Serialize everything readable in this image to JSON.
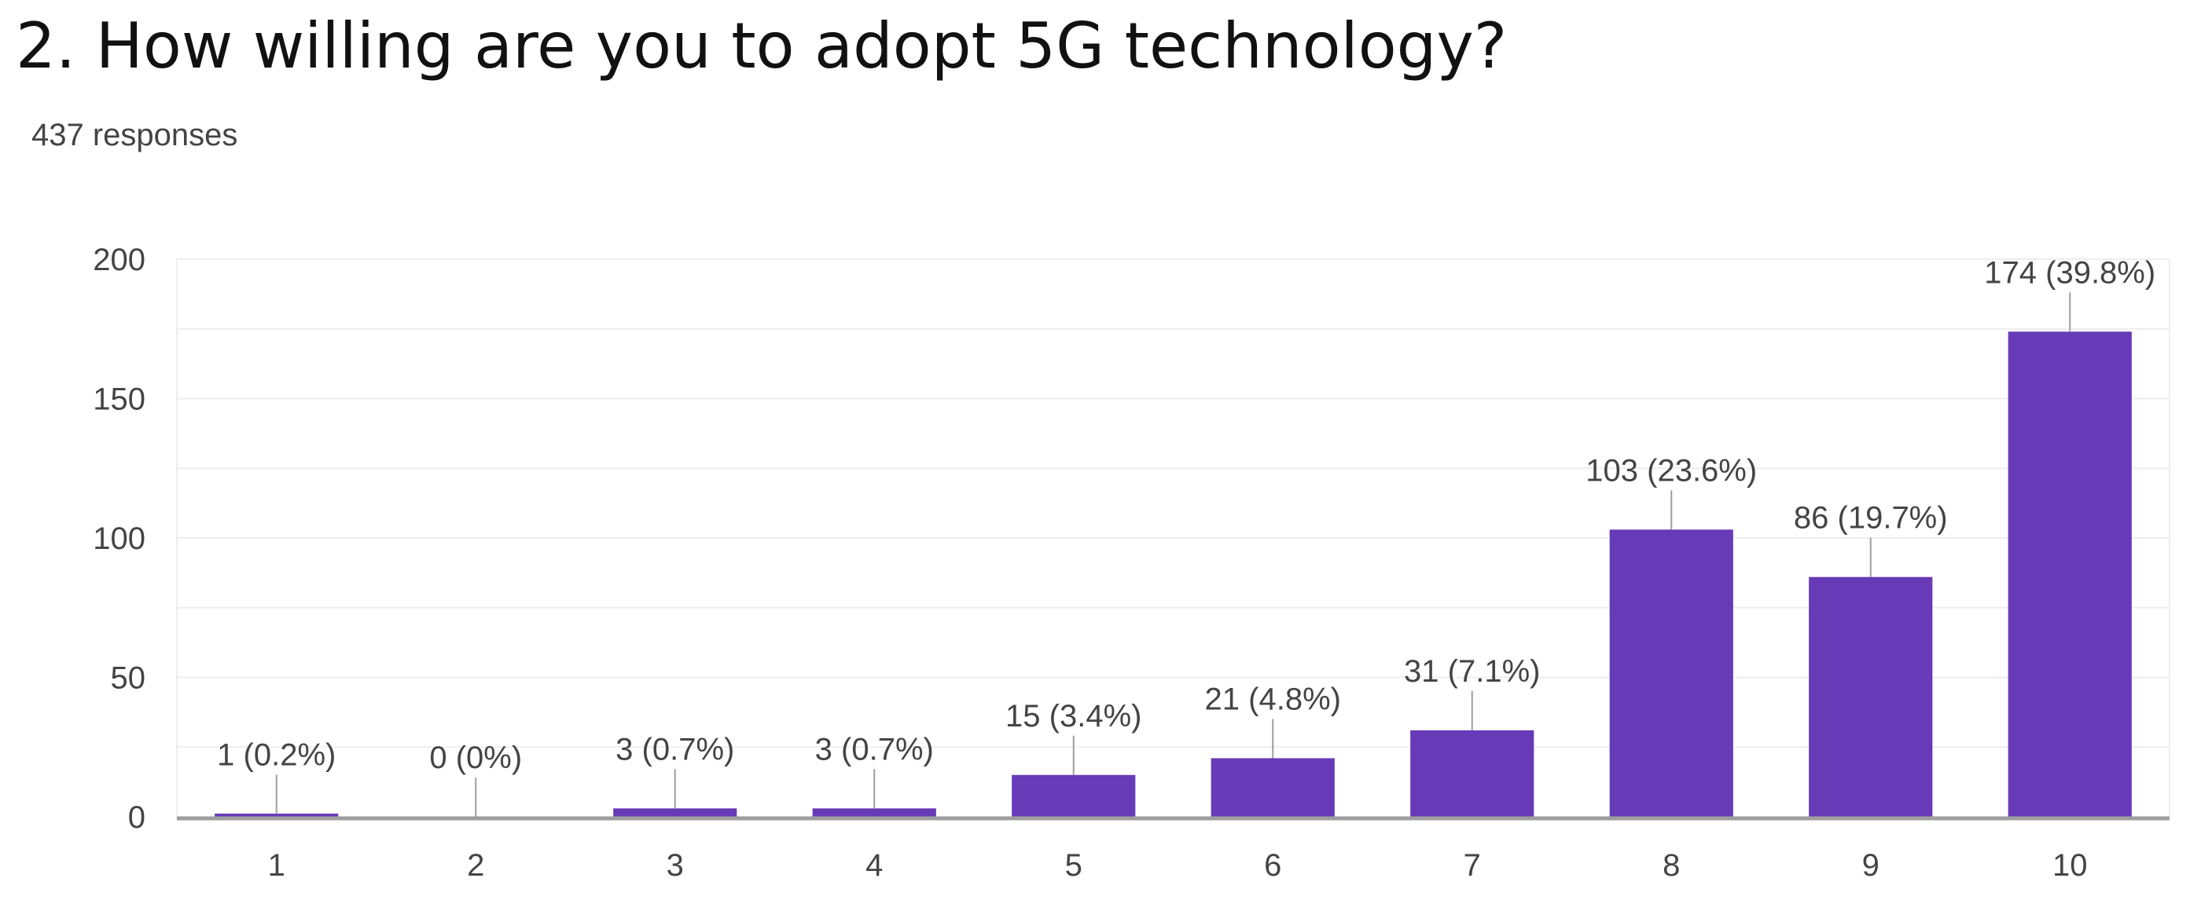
{
  "header": {
    "title": "2. How willing are you to adopt 5G technology?",
    "responses": "437 responses"
  },
  "chart_data": {
    "type": "bar",
    "title": "2. How willing are you to adopt 5G technology?",
    "subtitle": "437 responses",
    "xlabel": "",
    "ylabel": "",
    "categories": [
      "1",
      "2",
      "3",
      "4",
      "5",
      "6",
      "7",
      "8",
      "9",
      "10"
    ],
    "values": [
      1,
      0,
      3,
      3,
      15,
      21,
      31,
      103,
      86,
      174
    ],
    "data_labels": [
      "1 (0.2%)",
      "0 (0%)",
      "3 (0.7%)",
      "3 (0.7%)",
      "15 (3.4%)",
      "21 (4.8%)",
      "31 (7.1%)",
      "103 (23.6%)",
      "86 (19.7%)",
      "174 (39.8%)"
    ],
    "yticks": [
      0,
      50,
      100,
      150,
      200
    ],
    "ylim": [
      0,
      200
    ],
    "grid": true,
    "colors": {
      "bar": "#673ab7",
      "grid": "#eeeeee",
      "axis": "#9e9e9e",
      "text": "#444444"
    }
  }
}
